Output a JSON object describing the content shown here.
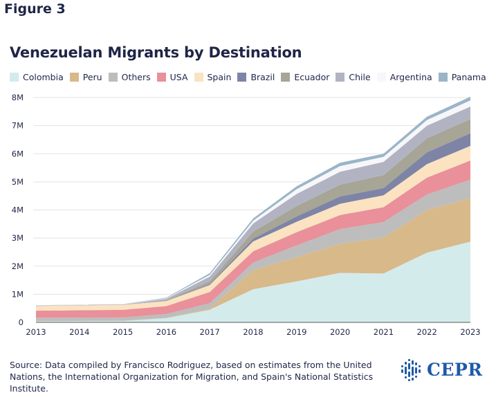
{
  "figure_label": "Figure 3",
  "source_text": "Source: Data compiled by Francisco Rodriguez, based on estimates from the United Nations, the International Organization for Migration, and Spain's National Statistics Institute.",
  "logo_text": "CEPR",
  "colors": {
    "Colombia": "#d4ebec",
    "Peru": "#d8b98a",
    "Others": "#bdbdbd",
    "USA": "#e9909a",
    "Spain": "#fbe3c1",
    "Brazil": "#7e84a6",
    "Ecuador": "#a6a596",
    "Chile": "#b2b3c2",
    "Argentina": "#f7f7f9",
    "Panama": "#9bb5c8",
    "grid": "#e3e3e3",
    "text": "#1f2547",
    "logo": "#1e5aa8"
  },
  "chart_data": {
    "type": "area",
    "stacked": true,
    "title": "Venezuelan Migrants by Destination",
    "xlabel": "",
    "ylabel": "",
    "x": [
      2013,
      2014,
      2015,
      2016,
      2017,
      2018,
      2019,
      2020,
      2021,
      2022,
      2023
    ],
    "ylim": [
      0,
      8000000
    ],
    "yticks": [
      0,
      1000000,
      2000000,
      3000000,
      4000000,
      5000000,
      6000000,
      7000000,
      8000000
    ],
    "ytick_labels": [
      "0",
      "1M",
      "2M",
      "3M",
      "4M",
      "5M",
      "6M",
      "7M",
      "8M"
    ],
    "grid": true,
    "legend_position": "top",
    "series": [
      {
        "name": "Colombia",
        "values": [
          40000,
          45000,
          50000,
          150000,
          450000,
          1180000,
          1460000,
          1760000,
          1740000,
          2480000,
          2870000
        ]
      },
      {
        "name": "Peru",
        "values": [
          5000,
          5000,
          5000,
          10000,
          50000,
          680000,
          860000,
          1040000,
          1280000,
          1520000,
          1550000
        ]
      },
      {
        "name": "Others",
        "values": [
          120000,
          120000,
          120000,
          140000,
          180000,
          270000,
          420000,
          520000,
          550000,
          550000,
          660000
        ]
      },
      {
        "name": "USA",
        "values": [
          250000,
          260000,
          270000,
          280000,
          400000,
          400000,
          470000,
          500000,
          530000,
          600000,
          680000
        ]
      },
      {
        "name": "Spain",
        "values": [
          170000,
          175000,
          180000,
          180000,
          250000,
          350000,
          370000,
          400000,
          420000,
          480000,
          520000
        ]
      },
      {
        "name": "Brazil",
        "values": [
          5000,
          5000,
          5000,
          10000,
          30000,
          100000,
          190000,
          260000,
          260000,
          420000,
          450000
        ]
      },
      {
        "name": "Ecuador",
        "values": [
          5000,
          5000,
          5000,
          20000,
          100000,
          250000,
          370000,
          420000,
          460000,
          500000,
          500000
        ]
      },
      {
        "name": "Chile",
        "values": [
          5000,
          5000,
          5000,
          50000,
          170000,
          290000,
          430000,
          460000,
          470000,
          450000,
          450000
        ]
      },
      {
        "name": "Argentina",
        "values": [
          5000,
          5000,
          5000,
          20000,
          60000,
          100000,
          170000,
          200000,
          180000,
          200000,
          220000
        ]
      },
      {
        "name": "Panama",
        "values": [
          5000,
          5000,
          5000,
          20000,
          60000,
          80000,
          100000,
          120000,
          110000,
          120000,
          130000
        ]
      }
    ]
  }
}
